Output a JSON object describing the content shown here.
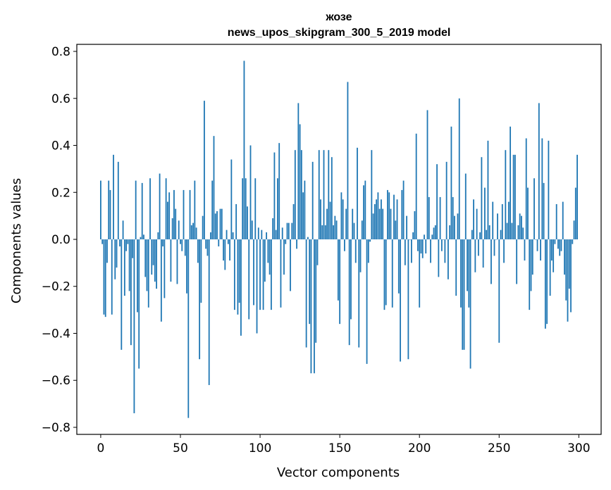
{
  "chart_data": {
    "type": "bar",
    "title": "жозе",
    "subtitle": "news_upos_skipgram_300_5_2019 model",
    "xlabel": "Vector components",
    "ylabel": "Components values",
    "xlim": [
      -15,
      314
    ],
    "ylim": [
      -0.83,
      0.83
    ],
    "x_ticks": [
      0,
      50,
      100,
      150,
      200,
      250,
      300
    ],
    "x_tick_labels": [
      "0",
      "50",
      "100",
      "150",
      "200",
      "250",
      "300"
    ],
    "y_ticks": [
      -0.8,
      -0.6,
      -0.4,
      -0.2,
      0.0,
      0.2,
      0.4,
      0.6,
      0.8
    ],
    "y_tick_labels": [
      "−0.8",
      "−0.6",
      "−0.4",
      "−0.2",
      "0.0",
      "0.2",
      "0.4",
      "0.6",
      "0.8"
    ],
    "grid": false,
    "bar_color": "#1f77b4",
    "values": [
      0.25,
      -0.02,
      -0.32,
      -0.33,
      -0.1,
      0.25,
      0.21,
      -0.32,
      0.36,
      -0.17,
      -0.12,
      0.33,
      -0.03,
      -0.47,
      0.08,
      -0.24,
      -0.05,
      -0.02,
      -0.22,
      -0.45,
      -0.08,
      -0.74,
      0.25,
      -0.31,
      -0.55,
      0.01,
      0.24,
      0.02,
      -0.16,
      -0.22,
      -0.29,
      0.26,
      -0.15,
      -0.11,
      -0.18,
      -0.21,
      0.03,
      0.28,
      -0.35,
      -0.03,
      -0.25,
      0.26,
      0.16,
      0.2,
      -0.18,
      0.09,
      0.21,
      0.13,
      -0.19,
      0.08,
      -0.02,
      -0.05,
      0.21,
      -0.07,
      -0.23,
      -0.76,
      0.21,
      0.06,
      0.07,
      0.25,
      0.05,
      -0.1,
      -0.51,
      -0.27,
      0.1,
      0.59,
      -0.04,
      -0.07,
      -0.62,
      0.03,
      0.25,
      0.44,
      0.11,
      0.12,
      -0.03,
      0.13,
      0.13,
      -0.09,
      -0.13,
      0.04,
      -0.02,
      -0.09,
      0.34,
      0.03,
      -0.3,
      0.15,
      -0.32,
      -0.27,
      -0.41,
      0.26,
      0.76,
      0.26,
      0.14,
      -0.34,
      0.4,
      0.08,
      -0.28,
      0.26,
      -0.4,
      0.05,
      -0.3,
      0.04,
      -0.3,
      -0.18,
      0.03,
      -0.1,
      -0.15,
      -0.3,
      0.09,
      0.37,
      0.04,
      0.26,
      0.41,
      -0.29,
      0.05,
      -0.15,
      -0.02,
      0.07,
      0.07,
      -0.22,
      0.07,
      0.15,
      0.38,
      -0.04,
      0.58,
      0.49,
      0.38,
      0.2,
      0.25,
      -0.46,
      0.01,
      -0.36,
      -0.57,
      0.33,
      -0.57,
      -0.44,
      -0.11,
      0.38,
      0.17,
      0.06,
      0.38,
      0.06,
      0.13,
      0.38,
      0.16,
      0.35,
      0.06,
      0.1,
      0.08,
      -0.26,
      -0.36,
      0.2,
      0.17,
      -0.05,
      0.13,
      0.67,
      -0.45,
      -0.34,
      0.13,
      0.07,
      -0.1,
      0.39,
      -0.46,
      -0.14,
      0.08,
      0.23,
      0.25,
      -0.53,
      -0.1,
      -0.01,
      0.38,
      0.11,
      0.15,
      0.17,
      0.2,
      0.13,
      0.17,
      0.13,
      -0.3,
      -0.28,
      0.21,
      0.2,
      0.13,
      -0.29,
      0.19,
      0.08,
      0.17,
      -0.23,
      -0.52,
      0.21,
      0.25,
      -0.11,
      0.1,
      -0.51,
      0.0,
      -0.1,
      0.03,
      0.12,
      0.45,
      -0.05,
      -0.29,
      -0.06,
      -0.08,
      0.02,
      -0.06,
      0.55,
      0.18,
      -0.1,
      0.02,
      0.05,
      0.06,
      0.32,
      -0.16,
      0.18,
      -0.05,
      0.0,
      -0.1,
      0.33,
      -0.17,
      0.06,
      0.48,
      0.18,
      0.1,
      -0.24,
      0.11,
      0.6,
      -0.29,
      -0.47,
      -0.47,
      0.28,
      -0.22,
      -0.29,
      -0.55,
      0.04,
      0.17,
      -0.14,
      0.13,
      -0.07,
      0.03,
      0.35,
      -0.12,
      0.22,
      0.04,
      0.42,
      0.06,
      -0.19,
      0.16,
      -0.07,
      0.0,
      0.11,
      -0.44,
      0.04,
      0.15,
      -0.1,
      0.38,
      0.07,
      0.16,
      0.48,
      0.07,
      0.36,
      0.36,
      -0.19,
      0.06,
      0.11,
      0.1,
      0.05,
      -0.09,
      0.43,
      0.22,
      -0.3,
      -0.22,
      -0.15,
      0.26,
      0.0,
      -0.05,
      0.58,
      -0.09,
      0.43,
      0.24,
      -0.38,
      -0.36,
      0.42,
      -0.24,
      -0.09,
      -0.14,
      -0.02,
      0.15,
      -0.04,
      -0.07,
      -0.05,
      0.16,
      -0.15,
      -0.26,
      -0.35,
      -0.21,
      -0.31,
      -0.02,
      0.08,
      0.22,
      0.36
    ]
  }
}
